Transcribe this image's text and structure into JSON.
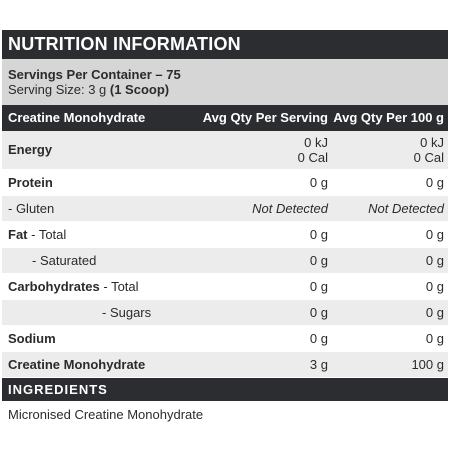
{
  "title": "NUTRITION INFORMATION",
  "servings": {
    "per_container": "Servings Per Container – 75",
    "size_prefix": "Serving Size: 3 g ",
    "size_bold": "(1 Scoop)"
  },
  "header": {
    "col1": "Creatine Monohydrate",
    "col2": "Avg Qty Per Serving",
    "col3": "Avg Qty Per 100 g"
  },
  "rows": [
    {
      "label_bold": "Energy",
      "label": "",
      "serving": "0 kJ",
      "serving2": "0 Cal",
      "per100": "0 kJ",
      "per100_2": "0 Cal"
    },
    {
      "label_bold": "Protein",
      "label": "",
      "serving": "0 g",
      "per100": "0 g"
    },
    {
      "label_bold": "",
      "label": "- Gluten",
      "serving": "Not Detected",
      "per100": "Not Detected"
    },
    {
      "label_bold": "Fat",
      "label": " - Total",
      "serving": "0 g",
      "per100": "0 g"
    },
    {
      "label_bold": "",
      "label": "- Saturated",
      "serving": "0 g",
      "per100": "0 g"
    },
    {
      "label_bold": "Carbohydrates",
      "label": " - Total",
      "serving": "0 g",
      "per100": "0 g"
    },
    {
      "label_bold": "",
      "label": "- Sugars",
      "serving": "0 g",
      "per100": "0 g"
    },
    {
      "label_bold": "Sodium",
      "label": "",
      "serving": "0 g",
      "per100": "0 g"
    },
    {
      "label_bold": "Creatine Monohydrate",
      "label": "",
      "serving": "3 g",
      "per100": "100 g"
    }
  ],
  "ingredients": {
    "heading": "INGREDIENTS",
    "text": "Micronised Creatine Monohydrate"
  }
}
